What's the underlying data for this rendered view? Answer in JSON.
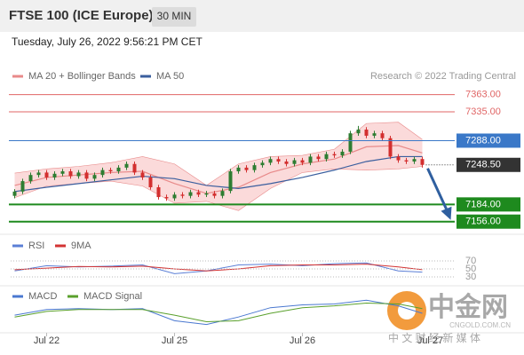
{
  "header": {
    "title": "FTSE 100 (ICE Europe)",
    "timeframe": "30 MIN",
    "timestamp": "Tuesday, July 26, 2022 9:56:21 PM CET"
  },
  "watermark": {
    "brand": "中金网",
    "tagline": "中 文 财 经 新 媒 体",
    "site": "CNGOLD.COM.CN"
  },
  "chart_data": [
    {
      "type": "candlestick",
      "credit": "Research © 2022 Trading Central",
      "xlim": [
        0,
        112
      ],
      "ylim": [
        7144,
        7416
      ],
      "xticks": [
        {
          "value": 9,
          "label": "Jul 22"
        },
        {
          "value": 41,
          "label": "Jul 25"
        },
        {
          "value": 73,
          "label": "Jul 26"
        },
        {
          "value": 105,
          "label": "Jul 27"
        }
      ],
      "up_color": "#2e7d32",
      "down_color": "#d32f2f",
      "x": [
        1,
        3,
        5,
        7,
        9,
        11,
        13,
        15,
        17,
        19,
        21,
        23,
        25,
        27,
        29,
        31,
        33,
        35,
        37,
        39,
        41,
        43,
        45,
        47,
        49,
        51,
        53,
        55,
        57,
        59,
        61,
        63,
        65,
        67,
        69,
        71,
        73,
        75,
        77,
        79,
        81,
        83,
        85,
        87,
        89,
        91,
        93,
        95,
        97,
        99,
        101,
        103
      ],
      "open": [
        7198,
        7205,
        7222,
        7232,
        7236,
        7228,
        7234,
        7238,
        7230,
        7236,
        7226,
        7232,
        7240,
        7238,
        7244,
        7250,
        7236,
        7228,
        7212,
        7196,
        7194,
        7200,
        7198,
        7204,
        7200,
        7202,
        7198,
        7206,
        7238,
        7244,
        7240,
        7248,
        7252,
        7258,
        7254,
        7250,
        7256,
        7252,
        7262,
        7258,
        7266,
        7264,
        7270,
        7300,
        7306,
        7296,
        7300,
        7292,
        7262,
        7256,
        7254,
        7258
      ],
      "high": [
        7209,
        7226,
        7236,
        7240,
        7240,
        7238,
        7242,
        7242,
        7240,
        7240,
        7236,
        7244,
        7244,
        7248,
        7254,
        7254,
        7240,
        7232,
        7216,
        7200,
        7204,
        7204,
        7208,
        7208,
        7206,
        7206,
        7210,
        7242,
        7248,
        7248,
        7252,
        7256,
        7262,
        7262,
        7258,
        7260,
        7260,
        7266,
        7266,
        7270,
        7270,
        7274,
        7304,
        7312,
        7310,
        7304,
        7304,
        7296,
        7266,
        7260,
        7262,
        7262
      ],
      "low": [
        7194,
        7201,
        7218,
        7228,
        7224,
        7224,
        7230,
        7226,
        7226,
        7222,
        7222,
        7228,
        7234,
        7234,
        7240,
        7232,
        7224,
        7208,
        7192,
        7190,
        7190,
        7194,
        7194,
        7196,
        7196,
        7194,
        7194,
        7202,
        7234,
        7236,
        7236,
        7244,
        7248,
        7250,
        7246,
        7246,
        7248,
        7248,
        7254,
        7254,
        7260,
        7260,
        7266,
        7296,
        7292,
        7292,
        7288,
        7258,
        7252,
        7250,
        7250,
        7244
      ],
      "close": [
        7205,
        7222,
        7232,
        7236,
        7228,
        7234,
        7238,
        7230,
        7236,
        7226,
        7232,
        7240,
        7238,
        7244,
        7250,
        7236,
        7228,
        7212,
        7196,
        7194,
        7200,
        7198,
        7204,
        7200,
        7202,
        7198,
        7206,
        7238,
        7244,
        7240,
        7248,
        7252,
        7258,
        7254,
        7250,
        7256,
        7252,
        7262,
        7258,
        7266,
        7264,
        7270,
        7300,
        7306,
        7296,
        7300,
        7292,
        7262,
        7256,
        7254,
        7258,
        7248.5
      ],
      "series": [
        {
          "name": "MA 20 + Bollinger Bands",
          "color": "#e88a8a",
          "band_color": "#fbdada",
          "x": [
            1,
            9,
            17,
            25,
            33,
            41,
            49,
            57,
            65,
            73,
            81,
            89,
            97,
            103
          ],
          "values": [
            7215,
            7228,
            7232,
            7236,
            7238,
            7218,
            7202,
            7212,
            7236,
            7250,
            7258,
            7278,
            7280,
            7268
          ],
          "upper": [
            7235,
            7242,
            7246,
            7252,
            7262,
            7250,
            7215,
            7250,
            7262,
            7264,
            7274,
            7316,
            7318,
            7290
          ],
          "lower": [
            7195,
            7214,
            7218,
            7222,
            7214,
            7186,
            7189,
            7174,
            7210,
            7236,
            7242,
            7240,
            7242,
            7246
          ]
        },
        {
          "name": "MA 50",
          "color": "#3a5e9e",
          "x": [
            1,
            9,
            17,
            25,
            33,
            41,
            49,
            57,
            65,
            73,
            81,
            89,
            97,
            103
          ],
          "values": [
            7205,
            7212,
            7218,
            7224,
            7230,
            7226,
            7215,
            7210,
            7218,
            7228,
            7240,
            7254,
            7262,
            7262
          ]
        }
      ],
      "levels": [
        {
          "value": 7363,
          "label": "7363.00",
          "color": "#e06666",
          "line": "thin",
          "box": false
        },
        {
          "value": 7335,
          "label": "7335.00",
          "color": "#e06666",
          "line": "thin",
          "box": false
        },
        {
          "value": 7288,
          "label": "7288.00",
          "color": "#3a78c8",
          "line": "thin",
          "box": true
        },
        {
          "value": 7248.5,
          "label": "7248.50",
          "color": "#333333",
          "line": "dotted",
          "box": true
        },
        {
          "value": 7184,
          "label": "7184.00",
          "color": "#1e8a1e",
          "line": "thick",
          "box": true
        },
        {
          "value": 7156,
          "label": "7156.00",
          "color": "#1e8a1e",
          "line": "thick",
          "box": true
        }
      ]
    },
    {
      "type": "line",
      "xlim": [
        0,
        112
      ],
      "ylim": [
        0,
        100
      ],
      "yticks": [
        70,
        50,
        30
      ],
      "grid": true,
      "x": [
        1,
        9,
        17,
        25,
        33,
        41,
        49,
        57,
        65,
        73,
        81,
        89,
        97,
        103
      ],
      "series": [
        {
          "name": "RSI",
          "color": "#5b7fd6",
          "values": [
            45,
            58,
            55,
            57,
            60,
            38,
            45,
            60,
            62,
            58,
            63,
            65,
            45,
            42
          ]
        },
        {
          "name": "9MA",
          "color": "#d33333",
          "values": [
            48,
            52,
            56,
            55,
            57,
            50,
            45,
            50,
            58,
            60,
            60,
            62,
            55,
            48
          ]
        }
      ]
    },
    {
      "type": "line",
      "xlim": [
        0,
        112
      ],
      "ylim": [
        -20,
        20
      ],
      "x": [
        1,
        9,
        17,
        25,
        33,
        41,
        49,
        57,
        65,
        73,
        81,
        89,
        97,
        103
      ],
      "series": [
        {
          "name": "MACD",
          "color": "#4a78d0",
          "values": [
            -2,
            4,
            5,
            4,
            5,
            -8,
            -12,
            -4,
            6,
            9,
            10,
            14,
            8,
            0
          ]
        },
        {
          "name": "MACD Signal",
          "color": "#5aa02c",
          "values": [
            -4,
            2,
            4,
            4,
            4,
            -2,
            -9,
            -8,
            0,
            6,
            8,
            11,
            10,
            5
          ]
        }
      ]
    }
  ]
}
